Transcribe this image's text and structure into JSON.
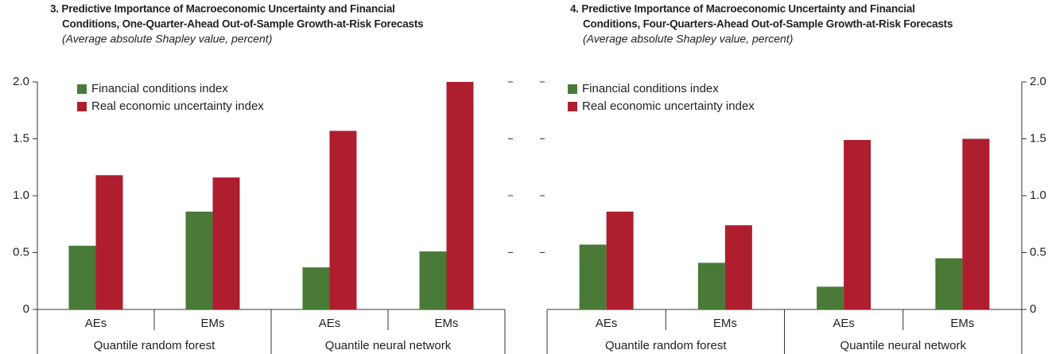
{
  "chart_data": [
    {
      "type": "bar",
      "title": [
        "3. Predictive Importance of Macroeconomic Uncertainty and Financial",
        "Conditions, One-Quarter-Ahead Out-of-Sample Growth-at-Risk Forecasts"
      ],
      "subtitle": "(Average absolute Shapley value, percent)",
      "categories": [
        "AEs",
        "EMs",
        "AEs",
        "EMs"
      ],
      "groups": [
        "Quantile random forest",
        "Quantile neural network"
      ],
      "series": [
        {
          "name": "Financial conditions index",
          "color": "#4a7a37",
          "values": [
            0.56,
            0.86,
            0.37,
            0.51
          ]
        },
        {
          "name": "Real economic uncertainty index",
          "color": "#ae1e2f",
          "values": [
            1.18,
            1.16,
            1.57,
            2.0
          ]
        }
      ],
      "ylim": [
        0,
        2
      ],
      "yticks": [
        0,
        0.5,
        {
          "value": 1,
          "label": "1.0"
        },
        1.5,
        {
          "value": 2,
          "label": "2.0"
        }
      ],
      "yaxis_side": "left"
    },
    {
      "type": "bar",
      "title": [
        "4. Predictive Importance of Macroeconomic Uncertainty and Financial",
        "Conditions, Four-Quarters-Ahead Out-of-Sample Growth-at-Risk Forecasts"
      ],
      "subtitle": "(Average absolute Shapley value, percent)",
      "categories": [
        "AEs",
        "EMs",
        "AEs",
        "EMs"
      ],
      "groups": [
        "Quantile random forest",
        "Quantile neural network"
      ],
      "series": [
        {
          "name": "Financial conditions index",
          "color": "#4a7a37",
          "values": [
            0.57,
            0.41,
            0.2,
            0.45
          ]
        },
        {
          "name": "Real economic uncertainty index",
          "color": "#ae1e2f",
          "values": [
            0.86,
            0.74,
            1.49,
            1.5
          ]
        }
      ],
      "ylim": [
        0,
        2
      ],
      "yticks": [
        0,
        0.5,
        {
          "value": 1,
          "label": "1.0"
        },
        1.5,
        {
          "value": 2,
          "label": "2.0"
        }
      ],
      "yaxis_side": "right"
    }
  ]
}
